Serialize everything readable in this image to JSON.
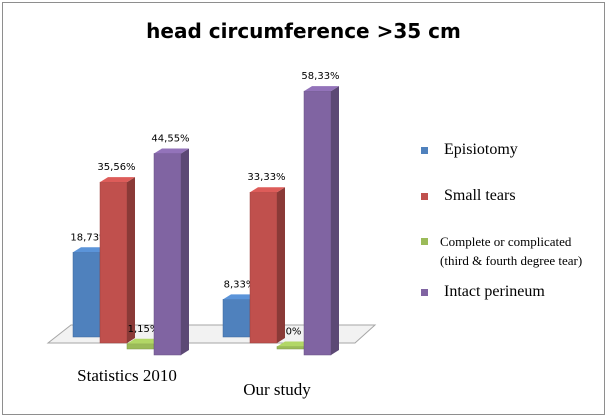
{
  "chart_data": {
    "type": "bar",
    "title": "head circumference >35 cm",
    "categories": [
      "Statistics 2010",
      "Our study"
    ],
    "series": [
      {
        "name": "Episiotomy",
        "values": [
          18.73,
          8.33
        ],
        "labels": [
          "18,73%",
          "8,33%"
        ],
        "color": "#4f81bd"
      },
      {
        "name": "Small tears",
        "values": [
          35.56,
          33.33
        ],
        "labels": [
          "35,56%",
          "33,33%"
        ],
        "color": "#c0504d"
      },
      {
        "name": "Complete or complicated (third & fourth degree tear)",
        "values": [
          1.15,
          0
        ],
        "labels": [
          "1,15%",
          "0%"
        ],
        "color": "#9bbb59"
      },
      {
        "name": "Intact perineum",
        "values": [
          44.55,
          58.33
        ],
        "labels": [
          "44,55%",
          "58,33%"
        ],
        "color": "#8064a2"
      }
    ],
    "ylim": [
      0,
      65
    ],
    "grid": false,
    "legend_position": "right",
    "style": "3d-clustered-column"
  },
  "legend": {
    "items": [
      {
        "label": "Episiotomy"
      },
      {
        "label": "Small tears"
      },
      {
        "label_line1": "Complete or complicated",
        "label_line2": "(third & fourth degree tear)"
      },
      {
        "label": "Intact perineum"
      }
    ]
  }
}
